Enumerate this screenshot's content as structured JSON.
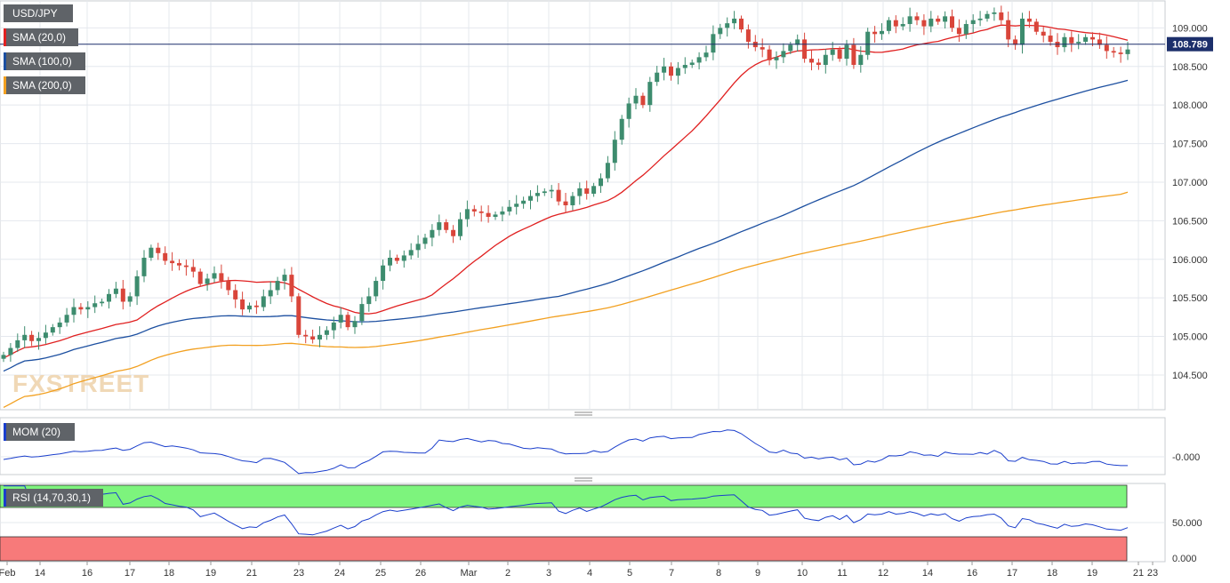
{
  "colors": {
    "up": "#3d8c6e",
    "down": "#d9453a",
    "sma20": "#e02020",
    "sma100": "#1c4fa0",
    "sma200": "#f2a020",
    "mom": "#1a3ecc",
    "rsi": "#1a3ecc",
    "rsi_over": "#7df47d",
    "rsi_under": "#f77a7a",
    "grid": "#e4e8ee",
    "axis": "#c8ccd2",
    "label_bg": "#5f6368",
    "price_line": "#1c2f6b"
  },
  "chart_data": [
    {
      "type": "candlestick",
      "symbol_label": "USD/JPY",
      "indicators": [
        {
          "label": "SMA (20,0)",
          "color": "#e02020"
        },
        {
          "label": "SMA (100,0)",
          "color": "#1c4fa0"
        },
        {
          "label": "SMA (200,0)",
          "color": "#f2a020"
        }
      ],
      "watermark": "FXSTREET",
      "y_ticks": [
        "104.500",
        "105.000",
        "105.500",
        "106.000",
        "106.500",
        "107.000",
        "107.500",
        "108.000",
        "108.500",
        "109.000"
      ],
      "ylim": [
        104.05,
        109.35
      ],
      "current_price": 108.789,
      "current_price_label": "108.789",
      "x_ticks": [
        "Feb",
        "14",
        "16",
        "17",
        "18",
        "19",
        "21",
        "23",
        "24",
        "25",
        "26",
        "Mar",
        "2",
        "3",
        "4",
        "5",
        "7",
        "8",
        "9",
        "10",
        "11",
        "12",
        "14",
        "16",
        "17",
        "18",
        "19",
        "21",
        "23"
      ],
      "series_close": [
        104.76,
        104.85,
        104.95,
        105.02,
        104.94,
        104.98,
        105.05,
        105.12,
        105.18,
        105.28,
        105.38,
        105.35,
        105.38,
        105.43,
        105.45,
        105.55,
        105.62,
        105.45,
        105.52,
        105.78,
        106.02,
        106.15,
        106.08,
        105.98,
        105.95,
        105.92,
        105.9,
        105.84,
        105.68,
        105.75,
        105.82,
        105.72,
        105.6,
        105.48,
        105.35,
        105.4,
        105.38,
        105.52,
        105.6,
        105.72,
        105.8,
        105.52,
        105.02,
        105.0,
        104.96,
        105.02,
        105.08,
        105.18,
        105.28,
        105.12,
        105.2,
        105.42,
        105.52,
        105.72,
        105.92,
        106.02,
        105.98,
        106.05,
        106.12,
        106.2,
        106.28,
        106.38,
        106.48,
        106.38,
        106.3,
        106.52,
        106.65,
        106.62,
        106.6,
        106.55,
        106.58,
        106.62,
        106.68,
        106.72,
        106.76,
        106.82,
        106.86,
        106.88,
        106.9,
        106.75,
        106.7,
        106.82,
        106.92,
        106.85,
        106.95,
        107.05,
        107.25,
        107.55,
        107.82,
        108.02,
        108.12,
        108.0,
        108.3,
        108.42,
        108.5,
        108.38,
        108.48,
        108.52,
        108.55,
        108.62,
        108.68,
        108.92,
        109.0,
        109.06,
        109.12,
        108.98,
        108.82,
        108.75,
        108.72,
        108.58,
        108.62,
        108.7,
        108.78,
        108.85,
        108.6,
        108.55,
        108.52,
        108.65,
        108.72,
        108.6,
        108.78,
        108.52,
        108.65,
        108.95,
        108.92,
        108.96,
        109.1,
        109.02,
        109.05,
        109.15,
        109.1,
        109.02,
        109.12,
        109.08,
        109.15,
        109.0,
        108.92,
        109.05,
        109.1,
        109.12,
        109.18,
        109.2,
        109.1,
        108.85,
        108.78,
        109.12,
        109.08,
        108.95,
        108.9,
        108.82,
        108.75,
        108.88,
        108.8,
        108.82,
        108.88,
        108.85,
        108.78,
        108.7,
        108.68,
        108.66,
        108.72
      ],
      "sma20": {
        "start": 104.72,
        "end": 108.84
      },
      "sma100": {
        "start": 104.55,
        "end": 108.32
      },
      "sma200": {
        "start": 104.08,
        "end": 106.87
      }
    },
    {
      "type": "line",
      "label": "MOM (20)",
      "y_ticks": [
        "-0.000"
      ]
    },
    {
      "type": "line",
      "label": "RSI (14,70,30,1)",
      "y_ticks": [
        "50.000",
        "0.000"
      ],
      "ylim": [
        0,
        100
      ],
      "overbought": 70,
      "oversold": 30
    }
  ]
}
